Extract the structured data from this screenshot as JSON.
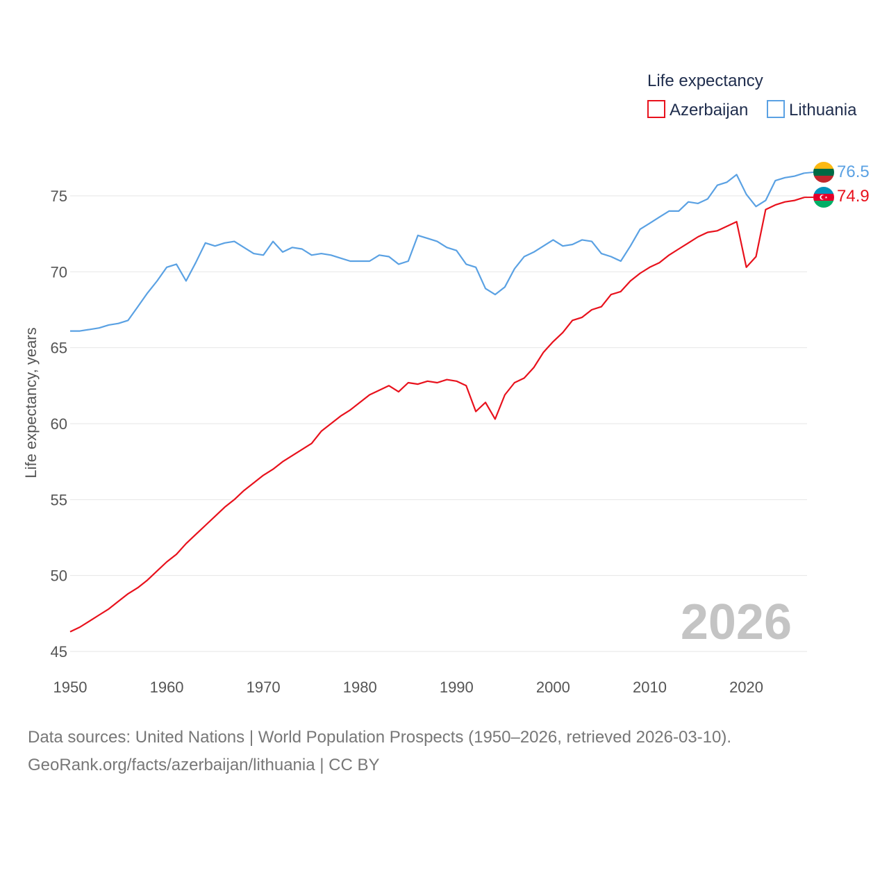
{
  "chart_data": {
    "type": "line",
    "title": "",
    "legend_title": "Life expectancy",
    "ylabel": "Life expectancy, years",
    "xlabel": "",
    "xlim": [
      1950,
      2026
    ],
    "ylim": [
      45,
      78
    ],
    "x_ticks": [
      1950,
      1960,
      1970,
      1980,
      1990,
      2000,
      2010,
      2020
    ],
    "y_ticks": [
      45,
      50,
      55,
      60,
      65,
      70,
      75
    ],
    "current_year": "2026",
    "grid": true,
    "legend_position": "top-right",
    "x": [
      1950,
      1951,
      1952,
      1953,
      1954,
      1955,
      1956,
      1957,
      1958,
      1959,
      1960,
      1961,
      1962,
      1963,
      1964,
      1965,
      1966,
      1967,
      1968,
      1969,
      1970,
      1971,
      1972,
      1973,
      1974,
      1975,
      1976,
      1977,
      1978,
      1979,
      1980,
      1981,
      1982,
      1983,
      1984,
      1985,
      1986,
      1987,
      1988,
      1989,
      1990,
      1991,
      1992,
      1993,
      1994,
      1995,
      1996,
      1997,
      1998,
      1999,
      2000,
      2001,
      2002,
      2003,
      2004,
      2005,
      2006,
      2007,
      2008,
      2009,
      2010,
      2011,
      2012,
      2013,
      2014,
      2015,
      2016,
      2017,
      2018,
      2019,
      2020,
      2021,
      2022,
      2023,
      2024,
      2025,
      2026
    ],
    "series": [
      {
        "name": "Azerbaijan",
        "color": "#e8111c",
        "flag": "azerbaijan-flag",
        "end_label": "74.9",
        "values": [
          46.3,
          46.6,
          47.0,
          47.4,
          47.8,
          48.3,
          48.8,
          49.2,
          49.7,
          50.3,
          50.9,
          51.4,
          52.1,
          52.7,
          53.3,
          53.9,
          54.5,
          55.0,
          55.6,
          56.1,
          56.6,
          57.0,
          57.5,
          57.9,
          58.3,
          58.7,
          59.5,
          60.0,
          60.5,
          60.9,
          61.4,
          61.9,
          62.2,
          62.5,
          62.1,
          62.7,
          62.6,
          62.8,
          62.7,
          62.9,
          62.8,
          62.5,
          60.8,
          61.4,
          60.3,
          61.9,
          62.7,
          63.0,
          63.7,
          64.7,
          65.4,
          66.0,
          66.8,
          67.0,
          67.5,
          67.7,
          68.5,
          68.7,
          69.4,
          69.9,
          70.3,
          70.6,
          71.1,
          71.5,
          71.9,
          72.3,
          72.6,
          72.7,
          73.0,
          73.3,
          70.3,
          71.0,
          74.1,
          74.4,
          74.6,
          74.7,
          74.9
        ]
      },
      {
        "name": "Lithuania",
        "color": "#5aa1e3",
        "flag": "lithuania-flag",
        "end_label": "76.5",
        "values": [
          66.1,
          66.1,
          66.2,
          66.3,
          66.5,
          66.6,
          66.8,
          67.7,
          68.6,
          69.4,
          70.3,
          70.5,
          69.4,
          70.6,
          71.9,
          71.7,
          71.9,
          72.0,
          71.6,
          71.2,
          71.1,
          72.0,
          71.3,
          71.6,
          71.5,
          71.1,
          71.2,
          71.1,
          70.9,
          70.7,
          70.7,
          70.7,
          71.1,
          71.0,
          70.5,
          70.7,
          72.4,
          72.2,
          72.0,
          71.6,
          71.4,
          70.5,
          70.3,
          68.9,
          68.5,
          69.0,
          70.2,
          71.0,
          71.3,
          71.7,
          72.1,
          71.7,
          71.8,
          72.1,
          72.0,
          71.2,
          71.0,
          70.7,
          71.7,
          72.8,
          73.2,
          73.6,
          74.0,
          74.0,
          74.6,
          74.5,
          74.8,
          75.7,
          75.9,
          76.4,
          75.1,
          74.3,
          74.7,
          76.0,
          76.2,
          76.3,
          76.5
        ]
      }
    ]
  },
  "footer": {
    "source_line": "Data sources: United Nations | World Population Prospects (1950–2026, retrieved 2026-03-10).",
    "attribution_line": "GeoRank.org/facts/azerbaijan/lithuania | CC BY"
  }
}
